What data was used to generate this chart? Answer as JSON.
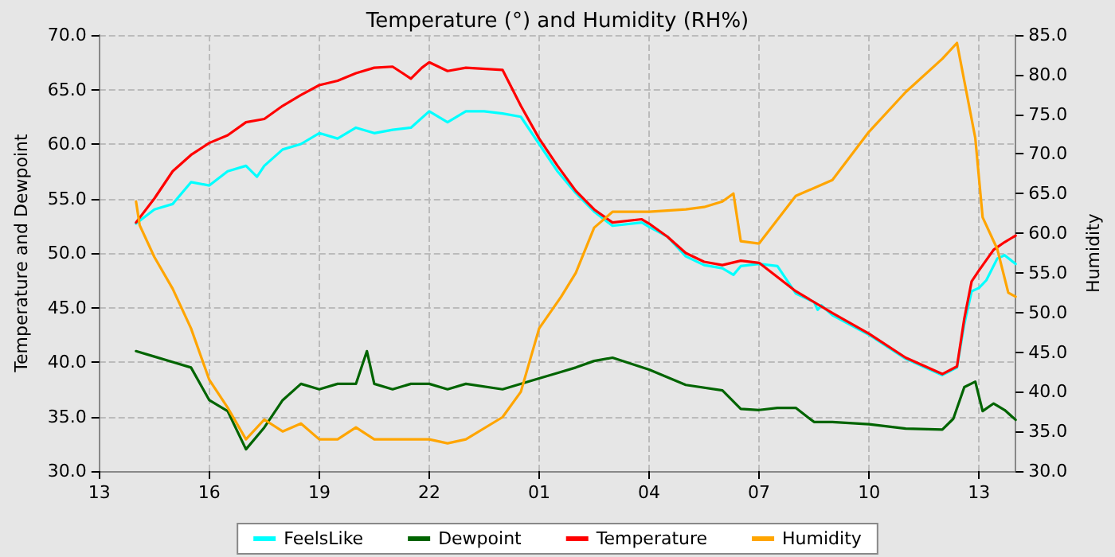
{
  "chart_data": {
    "type": "line",
    "title": "Temperature (°) and Humidity (RH%)",
    "ylabel": "Temperature and Dewpoint",
    "y2label": "Humidity",
    "xlim": [
      "--01-01T13:00",
      "--01-02T14:00"
    ],
    "xticks": [
      {
        "value": "--01-01T13:00",
        "label": "13"
      },
      {
        "value": "--01-01T16:00",
        "label": "16"
      },
      {
        "value": "--01-01T19:00",
        "label": "19"
      },
      {
        "value": "--01-01T22:00",
        "label": "22"
      },
      {
        "value": "--01-02T01:00",
        "label": "01"
      },
      {
        "value": "--01-02T04:00",
        "label": "04"
      },
      {
        "value": "--01-02T07:00",
        "label": "07"
      },
      {
        "value": "--01-02T10:00",
        "label": "10"
      },
      {
        "value": "--01-02T13:00",
        "label": "13"
      }
    ],
    "ylim": [
      30,
      70
    ],
    "yticks": [
      {
        "value": 30,
        "label": "30.0"
      },
      {
        "value": 35,
        "label": "35.0"
      },
      {
        "value": 40,
        "label": "40.0"
      },
      {
        "value": 45,
        "label": "45.0"
      },
      {
        "value": 50,
        "label": "50.0"
      },
      {
        "value": 55,
        "label": "55.0"
      },
      {
        "value": 60,
        "label": "60.0"
      },
      {
        "value": 65,
        "label": "65.0"
      },
      {
        "value": 70,
        "label": "70.0"
      }
    ],
    "y2lim": [
      30,
      85
    ],
    "y2ticks": [
      {
        "value": 30,
        "label": "30.0"
      },
      {
        "value": 35,
        "label": "35.0"
      },
      {
        "value": 40,
        "label": "40.0"
      },
      {
        "value": 45,
        "label": "45.0"
      },
      {
        "value": 50,
        "label": "50.0"
      },
      {
        "value": 55,
        "label": "55.0"
      },
      {
        "value": 60,
        "label": "60.0"
      },
      {
        "value": 65,
        "label": "65.0"
      },
      {
        "value": 70,
        "label": "70.0"
      },
      {
        "value": 75,
        "label": "75.0"
      },
      {
        "value": 80,
        "label": "80.0"
      },
      {
        "value": 85,
        "label": "85.0"
      }
    ],
    "grid": true,
    "legend": "bottom",
    "marker": "none",
    "line_style": "solid",
    "series": [
      {
        "name": "FeelsLike",
        "color": "#00ffff",
        "x": [
          "--01-01T14:00",
          "--01-01T14:30",
          "--01-01T15:00",
          "--01-01T15:30",
          "--01-01T16:00",
          "--01-01T16:30",
          "--01-01T17:00",
          "--01-01T17:18",
          "--01-01T17:30",
          "--01-01T18:00",
          "--01-01T18:30",
          "--01-01T19:00",
          "--01-01T19:30",
          "--01-01T20:00",
          "--01-01T20:30",
          "--01-01T21:00",
          "--01-01T21:30",
          "--01-01T22:00",
          "--01-01T22:30",
          "--01-01T23:00",
          "--01-01T23:30",
          "--01-02T00:00",
          "--01-02T00:30",
          "--01-02T01:00",
          "--01-02T01:30",
          "--01-02T02:00",
          "--01-02T02:30",
          "--01-02T03:00",
          "--01-02T03:48",
          "--01-02T04:00",
          "--01-02T04:30",
          "--01-02T05:00",
          "--01-02T05:30",
          "--01-02T06:00",
          "--01-02T06:18",
          "--01-02T06:30",
          "--01-02T07:00",
          "--01-02T07:30",
          "--01-02T08:00",
          "--01-02T08:30",
          "--01-02T08:36",
          "--01-02T08:42",
          "--01-02T09:00",
          "--01-02T10:00",
          "--01-02T11:00",
          "--01-02T12:00",
          "--01-02T12:24",
          "--01-02T12:36",
          "--01-02T12:48",
          "--01-02T13:00",
          "--01-02T13:12",
          "--01-02T13:30",
          "--01-02T13:42",
          "--01-02T14:00"
        ],
        "values": [
          52.7,
          54,
          54.5,
          56.5,
          56.2,
          57.5,
          58,
          57,
          58,
          59.5,
          60,
          61,
          60.5,
          61.5,
          61,
          61.3,
          61.5,
          63,
          62,
          63,
          63,
          62.8,
          62.5,
          60,
          57.5,
          55.5,
          53.8,
          52.5,
          52.8,
          52.4,
          51.5,
          49.7,
          48.9,
          48.6,
          48,
          48.8,
          49,
          48.8,
          46.3,
          45.5,
          44.8,
          45.2,
          44.3,
          42.5,
          40.3,
          38.8,
          39.5,
          43.5,
          46.5,
          46.8,
          47.5,
          49.5,
          49.8,
          49
        ]
      },
      {
        "name": "Dewpoint",
        "color": "#006400",
        "x": [
          "--01-01T14:00",
          "--01-01T14:30",
          "--01-01T15:00",
          "--01-01T15:30",
          "--01-01T16:00",
          "--01-01T16:30",
          "--01-01T17:00",
          "--01-01T17:30",
          "--01-01T18:00",
          "--01-01T18:30",
          "--01-01T19:00",
          "--01-01T19:30",
          "--01-01T20:00",
          "--01-01T20:18",
          "--01-01T20:30",
          "--01-01T21:00",
          "--01-01T21:30",
          "--01-01T22:00",
          "--01-01T22:30",
          "--01-01T23:00",
          "--01-02T00:00",
          "--01-02T01:00",
          "--01-02T01:30",
          "--01-02T02:00",
          "--01-02T02:30",
          "--01-02T03:00",
          "--01-02T04:00",
          "--01-02T05:00",
          "--01-02T06:00",
          "--01-02T06:30",
          "--01-02T07:00",
          "--01-02T07:30",
          "--01-02T08:00",
          "--01-02T08:30",
          "--01-02T09:00",
          "--01-02T10:00",
          "--01-02T11:00",
          "--01-02T12:00",
          "--01-02T12:18",
          "--01-02T12:36",
          "--01-02T12:54",
          "--01-02T13:06",
          "--01-02T13:24",
          "--01-02T13:42",
          "--01-02T14:00"
        ],
        "values": [
          41,
          40.5,
          40,
          39.5,
          36.5,
          35.5,
          32,
          34,
          36.5,
          38,
          37.5,
          38,
          38,
          41,
          38,
          37.5,
          38,
          38,
          37.5,
          38,
          37.5,
          38.5,
          39,
          39.5,
          40.1,
          40.4,
          39.3,
          37.9,
          37.4,
          35.7,
          35.6,
          35.8,
          35.8,
          34.5,
          34.5,
          34.3,
          33.9,
          33.8,
          34.8,
          37.7,
          38.2,
          35.5,
          36.2,
          35.6,
          34.7
        ]
      },
      {
        "name": "Temperature",
        "color": "#ff0000",
        "x": [
          "--01-01T14:00",
          "--01-01T14:30",
          "--01-01T15:00",
          "--01-01T15:30",
          "--01-01T16:00",
          "--01-01T16:30",
          "--01-01T17:00",
          "--01-01T17:30",
          "--01-01T18:00",
          "--01-01T18:30",
          "--01-01T19:00",
          "--01-01T19:30",
          "--01-01T20:00",
          "--01-01T20:30",
          "--01-01T21:00",
          "--01-01T21:30",
          "--01-01T21:48",
          "--01-01T22:00",
          "--01-01T22:30",
          "--01-01T23:00",
          "--01-02T00:00",
          "--01-02T00:30",
          "--01-02T01:00",
          "--01-02T01:30",
          "--01-02T02:00",
          "--01-02T02:30",
          "--01-02T03:00",
          "--01-02T03:48",
          "--01-02T04:00",
          "--01-02T04:30",
          "--01-02T05:00",
          "--01-02T05:30",
          "--01-02T06:00",
          "--01-02T06:30",
          "--01-02T07:00",
          "--01-02T08:00",
          "--01-02T09:00",
          "--01-02T10:00",
          "--01-02T11:00",
          "--01-02T12:00",
          "--01-02T12:24",
          "--01-02T12:36",
          "--01-02T12:48",
          "--01-02T13:00",
          "--01-02T13:24",
          "--01-02T13:42",
          "--01-02T14:00"
        ],
        "values": [
          52.8,
          55,
          57.5,
          59,
          60.1,
          60.8,
          62,
          62.3,
          63.5,
          64.5,
          65.4,
          65.8,
          66.5,
          67,
          67.1,
          66,
          67,
          67.5,
          66.7,
          67,
          66.8,
          63.5,
          60.5,
          58,
          55.7,
          54,
          52.8,
          53.1,
          52.7,
          51.5,
          50,
          49.2,
          48.9,
          49.3,
          49.1,
          46.5,
          44.5,
          42.6,
          40.4,
          38.9,
          39.6,
          44,
          47.4,
          48.4,
          50.3,
          51,
          51.6
        ]
      },
      {
        "name": "Humidity",
        "color": "#ffa500",
        "axis": "y2",
        "x": [
          "--01-01T14:00",
          "--01-01T14:06",
          "--01-01T14:30",
          "--01-01T15:00",
          "--01-01T15:30",
          "--01-01T16:00",
          "--01-01T16:30",
          "--01-01T17:00",
          "--01-01T17:30",
          "--01-01T18:00",
          "--01-01T18:30",
          "--01-01T19:00",
          "--01-01T19:30",
          "--01-01T20:00",
          "--01-01T20:30",
          "--01-01T21:00",
          "--01-01T21:30",
          "--01-01T22:00",
          "--01-01T22:30",
          "--01-01T23:00",
          "--01-02T00:00",
          "--01-02T00:30",
          "--01-02T01:00",
          "--01-02T01:36",
          "--01-02T02:00",
          "--01-02T02:30",
          "--01-02T03:00",
          "--01-02T04:00",
          "--01-02T05:00",
          "--01-02T05:30",
          "--01-02T06:00",
          "--01-02T06:18",
          "--01-02T06:30",
          "--01-02T07:00",
          "--01-02T08:00",
          "--01-02T09:00",
          "--01-02T10:00",
          "--01-02T11:00",
          "--01-02T12:00",
          "--01-02T12:24",
          "--01-02T12:54",
          "--01-02T13:06",
          "--01-02T13:30",
          "--01-02T13:48",
          "--01-02T14:00"
        ],
        "values": [
          64,
          61,
          57,
          53,
          48,
          41.5,
          38,
          34,
          36.5,
          35,
          36,
          34,
          34,
          35.5,
          34,
          34,
          34,
          34,
          33.5,
          34,
          36.8,
          40,
          48,
          52,
          55,
          60.7,
          62.7,
          62.7,
          63,
          63.3,
          64,
          65,
          59,
          58.7,
          64.7,
          66.7,
          72.8,
          77.8,
          82,
          84,
          72,
          62,
          58,
          52.5,
          52
        ]
      }
    ]
  }
}
